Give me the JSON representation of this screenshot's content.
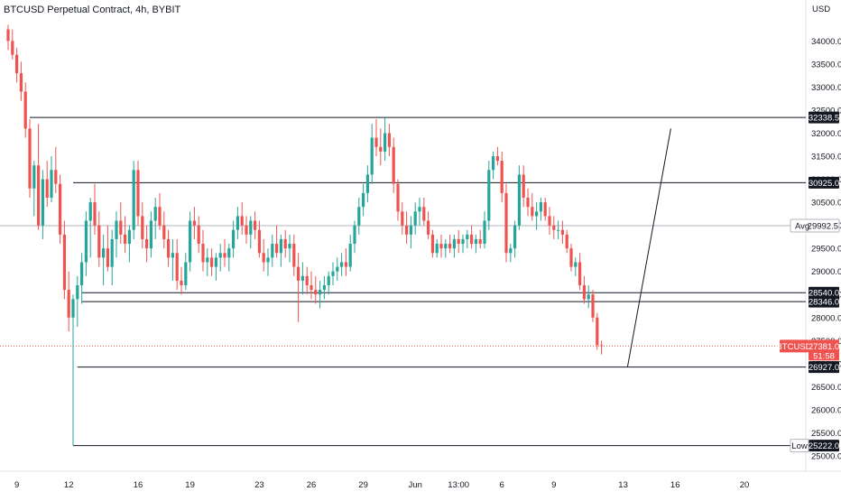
{
  "header": {
    "title": "BTCUSD Perpetual Contract, 4h, BYBIT"
  },
  "price_axis": {
    "unit": "USD"
  },
  "chart_data": {
    "type": "candlestick",
    "title": "BTCUSD Perpetual Contract, 4h, BYBIT",
    "ylabel": "USD",
    "ylim": [
      24800,
      34500
    ],
    "grid": false,
    "y_ticks": [
      "34000.0",
      "33500.0",
      "33000.0",
      "32500.0",
      "32000.0",
      "31500.0",
      "31000.0",
      "30500.0",
      "30000.0",
      "29500.0",
      "29000.0",
      "28500.0",
      "28000.0",
      "27500.0",
      "27000.0",
      "26500.0",
      "26000.0",
      "25500.0",
      "25000.0"
    ],
    "x_ticks": [
      {
        "label": "9",
        "index": 2
      },
      {
        "label": "12",
        "index": 14
      },
      {
        "label": "16",
        "index": 30
      },
      {
        "label": "19",
        "index": 42
      },
      {
        "label": "23",
        "index": 58
      },
      {
        "label": "26",
        "index": 70
      },
      {
        "label": "29",
        "index": 82
      },
      {
        "label": "Jun",
        "index": 94
      },
      {
        "label": "13:00",
        "index": 104
      },
      {
        "label": "6",
        "index": 114
      },
      {
        "label": "9",
        "index": 126
      },
      {
        "label": "13",
        "index": 142
      },
      {
        "label": "16",
        "index": 154
      },
      {
        "label": "20",
        "index": 170
      }
    ],
    "horizontal_lines": [
      {
        "value": 32338.5,
        "label": "32338.5",
        "start_index": 5
      },
      {
        "value": 30925.0,
        "label": "30925.0",
        "start_index": 15
      },
      {
        "value": 28540.0,
        "label": "28540.0",
        "start_index": 17
      },
      {
        "value": 28346.0,
        "label": "28346.0",
        "start_index": 17
      },
      {
        "value": 26927.0,
        "label": "26927.0",
        "start_index": 16
      },
      {
        "value": 25222.0,
        "label": "25222.0",
        "start_index": 15
      }
    ],
    "avg_line": {
      "value": 29992.5,
      "label": "Avg",
      "value_label": "29992.5"
    },
    "low_label": {
      "value": 25222.0,
      "label": "Low",
      "value_label": "25222.0"
    },
    "current_price": {
      "symbol": "BTCUSD",
      "value": 27381.0,
      "value_label": "27381.0",
      "countdown": "51:58"
    },
    "projection_line": [
      {
        "index": 143,
        "value": 26927
      },
      {
        "index": 153,
        "value": 32100
      }
    ],
    "up_color": "#26a69a",
    "down_color": "#ef5350",
    "candles": [
      [
        34250,
        34350,
        33800,
        34000
      ],
      [
        34000,
        34250,
        33600,
        33700
      ],
      [
        33700,
        33850,
        33100,
        33300
      ],
      [
        33300,
        33550,
        32700,
        32900
      ],
      [
        32900,
        33100,
        31900,
        32100
      ],
      [
        32100,
        32300,
        30600,
        30800
      ],
      [
        30800,
        31400,
        30200,
        31300
      ],
      [
        31300,
        32200,
        29900,
        30000
      ],
      [
        30000,
        31200,
        29700,
        31000
      ],
      [
        31000,
        31400,
        30400,
        30600
      ],
      [
        30600,
        31500,
        30500,
        31200
      ],
      [
        31200,
        31700,
        30700,
        30900
      ],
      [
        30900,
        31100,
        29600,
        29800
      ],
      [
        29800,
        30100,
        28400,
        28600
      ],
      [
        28600,
        29000,
        27700,
        28000
      ],
      [
        28000,
        28500,
        25222,
        28400
      ],
      [
        28400,
        28900,
        27800,
        28700
      ],
      [
        28700,
        29400,
        28300,
        29200
      ],
      [
        29200,
        30300,
        28900,
        30100
      ],
      [
        30100,
        30600,
        29300,
        30500
      ],
      [
        30500,
        30900,
        29800,
        30000
      ],
      [
        30000,
        30300,
        29100,
        29300
      ],
      [
        29300,
        29800,
        28700,
        29500
      ],
      [
        29500,
        30000,
        29000,
        29100
      ],
      [
        29100,
        29900,
        28700,
        29700
      ],
      [
        29700,
        30300,
        29300,
        30100
      ],
      [
        30100,
        30500,
        29600,
        29800
      ],
      [
        29800,
        30200,
        29400,
        29600
      ],
      [
        29600,
        30000,
        29200,
        29900
      ],
      [
        29900,
        31400,
        29700,
        31200
      ],
      [
        31200,
        31400,
        30000,
        30200
      ],
      [
        30200,
        30500,
        29500,
        29700
      ],
      [
        29700,
        30000,
        29200,
        29500
      ],
      [
        29500,
        30300,
        29300,
        30100
      ],
      [
        30100,
        30600,
        29700,
        30400
      ],
      [
        30400,
        30700,
        29900,
        30000
      ],
      [
        30000,
        30300,
        29500,
        29700
      ],
      [
        29700,
        29900,
        29100,
        29300
      ],
      [
        29300,
        29700,
        28800,
        29400
      ],
      [
        29400,
        29700,
        28600,
        28800
      ],
      [
        28800,
        29100,
        28500,
        28700
      ],
      [
        28700,
        29400,
        28600,
        29200
      ],
      [
        29200,
        30300,
        29000,
        30100
      ],
      [
        30100,
        30400,
        29700,
        30000
      ],
      [
        30000,
        30200,
        29400,
        29600
      ],
      [
        29600,
        29900,
        29000,
        29200
      ],
      [
        29200,
        29500,
        28900,
        29300
      ],
      [
        29300,
        29500,
        28900,
        29100
      ],
      [
        29100,
        29400,
        28800,
        29300
      ],
      [
        29300,
        29600,
        29000,
        29400
      ],
      [
        29400,
        29700,
        29100,
        29300
      ],
      [
        29300,
        29600,
        29000,
        29500
      ],
      [
        29500,
        30100,
        29300,
        29900
      ],
      [
        29900,
        30400,
        29700,
        30200
      ],
      [
        30200,
        30500,
        29800,
        30000
      ],
      [
        30000,
        30200,
        29600,
        29800
      ],
      [
        29800,
        30200,
        29500,
        30100
      ],
      [
        30100,
        30300,
        29700,
        29900
      ],
      [
        29900,
        30100,
        29300,
        29400
      ],
      [
        29400,
        29700,
        29000,
        29200
      ],
      [
        29200,
        29500,
        28900,
        29300
      ],
      [
        29300,
        29800,
        29100,
        29600
      ],
      [
        29600,
        30000,
        29300,
        29400
      ],
      [
        29400,
        29800,
        29100,
        29700
      ],
      [
        29700,
        29900,
        29300,
        29500
      ],
      [
        29500,
        29800,
        29200,
        29600
      ],
      [
        29600,
        29800,
        28900,
        29100
      ],
      [
        29100,
        29400,
        27900,
        28800
      ],
      [
        28800,
        29200,
        28500,
        28900
      ],
      [
        28900,
        29100,
        28500,
        28700
      ],
      [
        28700,
        29000,
        28400,
        28600
      ],
      [
        28600,
        28900,
        28300,
        28500
      ],
      [
        28500,
        28800,
        28200,
        28600
      ],
      [
        28600,
        28900,
        28400,
        28700
      ],
      [
        28700,
        29000,
        28500,
        28900
      ],
      [
        28900,
        29200,
        28700,
        29000
      ],
      [
        29000,
        29300,
        28800,
        29100
      ],
      [
        29100,
        29400,
        28900,
        29200
      ],
      [
        29200,
        29500,
        28900,
        29100
      ],
      [
        29100,
        29800,
        29000,
        29600
      ],
      [
        29600,
        30100,
        29400,
        30000
      ],
      [
        30000,
        30600,
        29800,
        30400
      ],
      [
        30400,
        30900,
        30200,
        30700
      ],
      [
        30700,
        31300,
        30500,
        31100
      ],
      [
        31100,
        32200,
        30900,
        31900
      ],
      [
        31900,
        32300,
        31500,
        31700
      ],
      [
        31700,
        32100,
        31300,
        31600
      ],
      [
        31600,
        32338,
        31400,
        32000
      ],
      [
        32000,
        32200,
        31500,
        31700
      ],
      [
        31700,
        31900,
        30700,
        30900
      ],
      [
        30900,
        31000,
        30100,
        30300
      ],
      [
        30300,
        30500,
        29800,
        30000
      ],
      [
        30000,
        30300,
        29600,
        29800
      ],
      [
        29800,
        30200,
        29500,
        30000
      ],
      [
        30000,
        30500,
        29800,
        30300
      ],
      [
        30300,
        30600,
        30000,
        30400
      ],
      [
        30400,
        30600,
        30000,
        30100
      ],
      [
        30100,
        30300,
        29700,
        29800
      ],
      [
        29800,
        29900,
        29300,
        29400
      ],
      [
        29400,
        29700,
        29300,
        29600
      ],
      [
        29600,
        29800,
        29300,
        29500
      ],
      [
        29500,
        29700,
        29300,
        29600
      ],
      [
        29600,
        29800,
        29400,
        29500
      ],
      [
        29500,
        29800,
        29300,
        29700
      ],
      [
        29700,
        29900,
        29400,
        29600
      ],
      [
        29600,
        29800,
        29400,
        29700
      ],
      [
        29700,
        29900,
        29500,
        29800
      ],
      [
        29800,
        30000,
        29500,
        29600
      ],
      [
        29600,
        29800,
        29400,
        29700
      ],
      [
        29700,
        29900,
        29500,
        29600
      ],
      [
        29600,
        30300,
        29500,
        30100
      ],
      [
        30100,
        31400,
        29900,
        31200
      ],
      [
        31200,
        31600,
        31000,
        31500
      ],
      [
        31500,
        31700,
        31300,
        31400
      ],
      [
        31400,
        31600,
        30500,
        30700
      ],
      [
        30700,
        30900,
        29200,
        29400
      ],
      [
        29400,
        29600,
        29200,
        29500
      ],
      [
        29500,
        30100,
        29300,
        30000
      ],
      [
        30000,
        31300,
        29900,
        31100
      ],
      [
        31100,
        31300,
        30400,
        30600
      ],
      [
        30600,
        30800,
        30200,
        30400
      ],
      [
        30400,
        30700,
        30100,
        30200
      ],
      [
        30200,
        30500,
        29900,
        30300
      ],
      [
        30300,
        30600,
        30100,
        30500
      ],
      [
        30500,
        30600,
        30100,
        30200
      ],
      [
        30200,
        30400,
        29800,
        30000
      ],
      [
        30000,
        30200,
        29700,
        29900
      ],
      [
        29900,
        30100,
        29700,
        29900
      ],
      [
        29900,
        30100,
        29600,
        29800
      ],
      [
        29800,
        29900,
        29400,
        29500
      ],
      [
        29500,
        29600,
        29000,
        29100
      ],
      [
        29100,
        29300,
        28900,
        29200
      ],
      [
        29200,
        29400,
        28600,
        28700
      ],
      [
        28700,
        28900,
        28300,
        28400
      ],
      [
        28400,
        28700,
        28200,
        28500
      ],
      [
        28500,
        28600,
        27900,
        28000
      ],
      [
        28000,
        28100,
        27300,
        27400
      ],
      [
        27400,
        27500,
        27200,
        27381
      ]
    ]
  }
}
